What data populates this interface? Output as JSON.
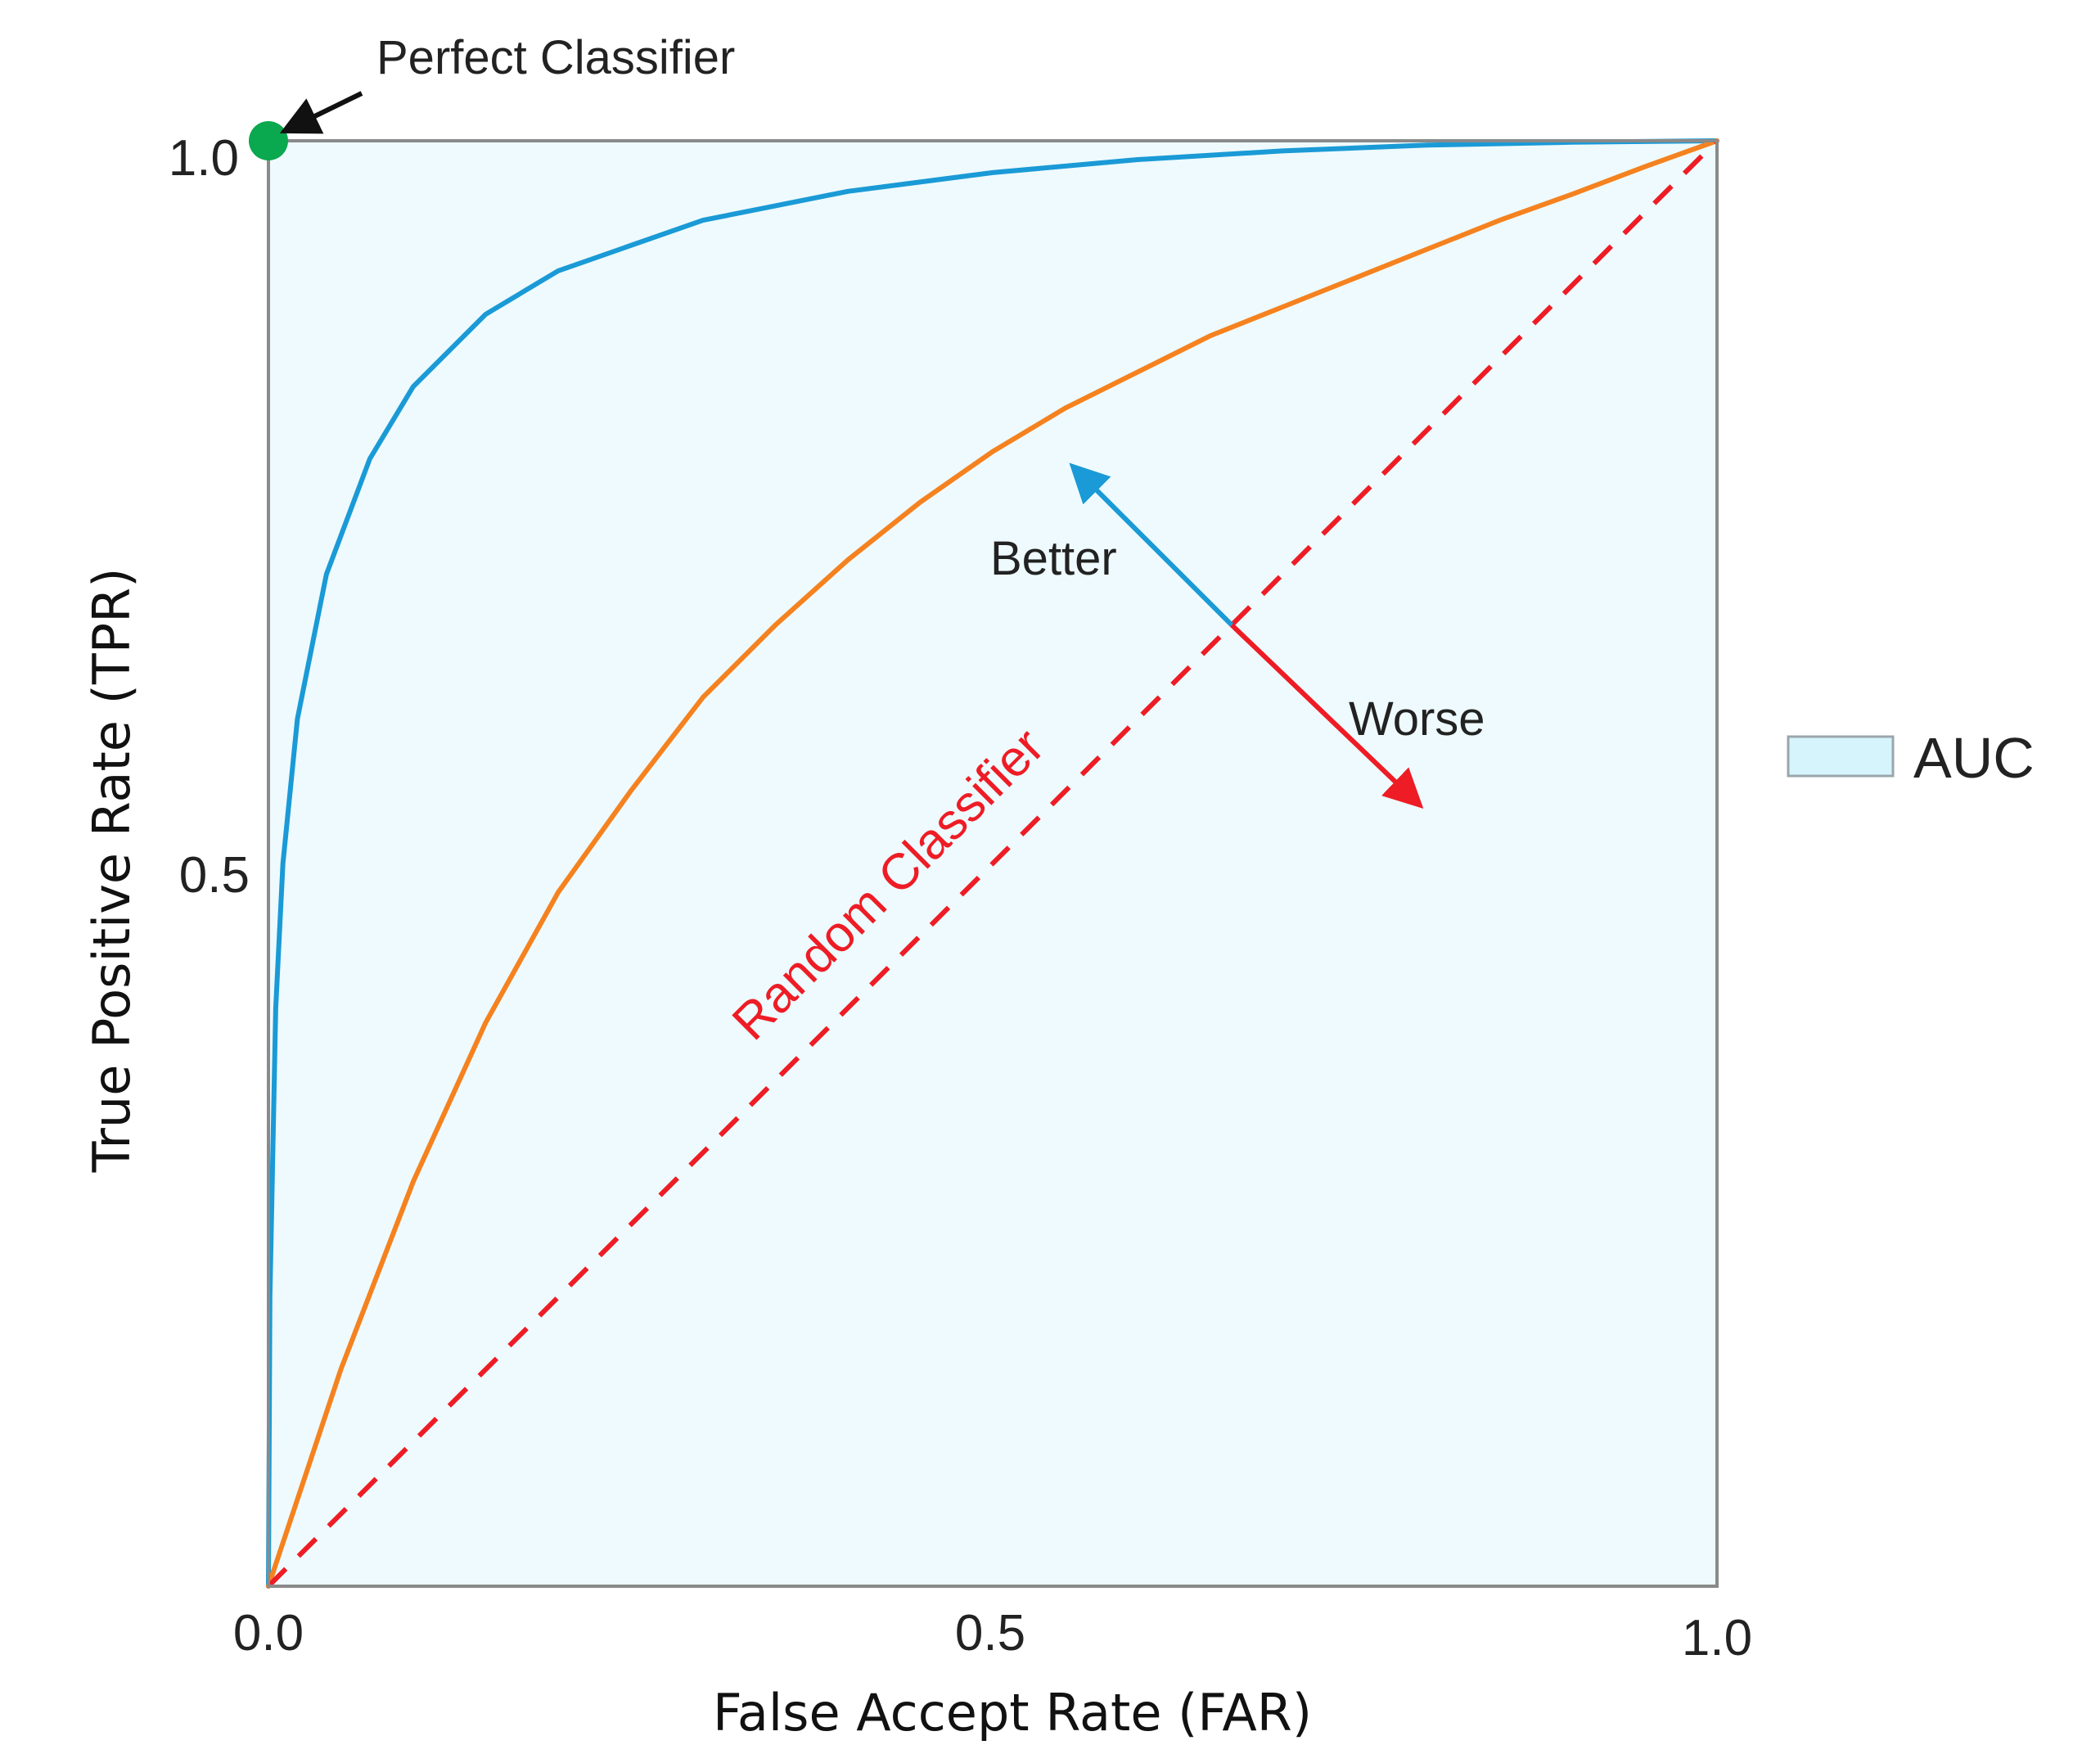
{
  "chart_data": {
    "type": "line",
    "xlabel": "False Accept Rate (FAR)",
    "ylabel": "True Positive Rate (TPR)",
    "xlim": [
      0,
      1
    ],
    "ylim": [
      0,
      1
    ],
    "x_ticks": [
      "0.0",
      "0.5",
      "1.0"
    ],
    "y_ticks": [
      "0.5",
      "1.0"
    ],
    "grid": false,
    "series": [
      {
        "color": "#1a9ad6",
        "points": [
          [
            0,
            0
          ],
          [
            0.001,
            0.2
          ],
          [
            0.005,
            0.4
          ],
          [
            0.01,
            0.5
          ],
          [
            0.02,
            0.6
          ],
          [
            0.04,
            0.7
          ],
          [
            0.07,
            0.78
          ],
          [
            0.1,
            0.83
          ],
          [
            0.15,
            0.88
          ],
          [
            0.2,
            0.91
          ],
          [
            0.3,
            0.945
          ],
          [
            0.4,
            0.965
          ],
          [
            0.5,
            0.978
          ],
          [
            0.6,
            0.987
          ],
          [
            0.7,
            0.993
          ],
          [
            0.8,
            0.997
          ],
          [
            0.9,
            0.999
          ],
          [
            1,
            1
          ]
        ]
      },
      {
        "color": "#f5821f",
        "points": [
          [
            0,
            0
          ],
          [
            0.05,
            0.15
          ],
          [
            0.1,
            0.28
          ],
          [
            0.15,
            0.39
          ],
          [
            0.2,
            0.48
          ],
          [
            0.25,
            0.55
          ],
          [
            0.3,
            0.615
          ],
          [
            0.35,
            0.665
          ],
          [
            0.4,
            0.71
          ],
          [
            0.45,
            0.75
          ],
          [
            0.5,
            0.785
          ],
          [
            0.55,
            0.815
          ],
          [
            0.6,
            0.84
          ],
          [
            0.65,
            0.865
          ],
          [
            0.7,
            0.885
          ],
          [
            0.75,
            0.905
          ],
          [
            0.8,
            0.925
          ],
          [
            0.85,
            0.945
          ],
          [
            0.9,
            0.963
          ],
          [
            0.95,
            0.982
          ],
          [
            1,
            1
          ]
        ]
      },
      {
        "name": "Random Classifier",
        "color": "#ee1c25",
        "dashed": true,
        "points": [
          [
            0,
            0
          ],
          [
            1,
            1
          ]
        ]
      }
    ],
    "points": [
      {
        "label": "Perfect Classifier",
        "x": 0,
        "y": 1,
        "color": "#0aa84f"
      }
    ],
    "arrows": [
      {
        "label": "Better",
        "color": "#1a9ad6",
        "from": [
          0.665,
          0.665
        ],
        "to": [
          0.56,
          0.77
        ]
      },
      {
        "label": "Worse",
        "color": "#ee1c25",
        "from": [
          0.665,
          0.665
        ],
        "to": [
          0.79,
          0.545
        ]
      }
    ],
    "legend": {
      "entries": [
        "AUC"
      ],
      "placement": "right",
      "fill": "#d6f4fc"
    },
    "area_fill": "#eefafd"
  }
}
